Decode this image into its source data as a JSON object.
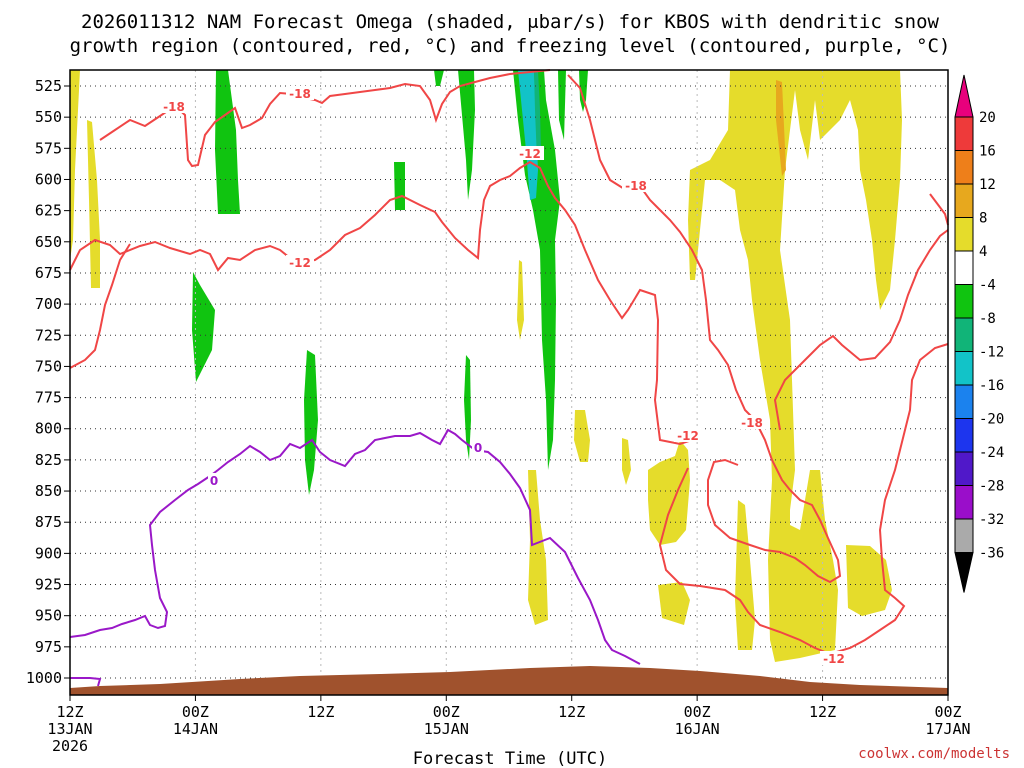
{
  "chart_data": {
    "type": "heatmap",
    "title_line1": "2026011312 NAM Forecast Omega (shaded, μbar/s) for KBOS with dendritic snow",
    "title_line2": "growth region (contoured, red, °C) and freezing level (contoured, purple, °C)",
    "xlabel": "Forecast Time (UTC)",
    "y_ticks": [
      525,
      550,
      575,
      600,
      625,
      650,
      675,
      700,
      725,
      750,
      775,
      800,
      825,
      850,
      875,
      900,
      925,
      950,
      975,
      1000
    ],
    "x_ticks": [
      {
        "hour": 0,
        "line1": "12Z",
        "line2": "13JAN",
        "line3": "2026"
      },
      {
        "hour": 12,
        "line1": "00Z",
        "line2": "14JAN",
        "line3": ""
      },
      {
        "hour": 24,
        "line1": "12Z",
        "line2": "",
        "line3": ""
      },
      {
        "hour": 36,
        "line1": "00Z",
        "line2": "15JAN",
        "line3": ""
      },
      {
        "hour": 48,
        "line1": "12Z",
        "line2": "",
        "line3": ""
      },
      {
        "hour": 60,
        "line1": "00Z",
        "line2": "16JAN",
        "line3": ""
      },
      {
        "hour": 72,
        "line1": "12Z",
        "line2": "",
        "line3": ""
      },
      {
        "hour": 84,
        "line1": "00Z",
        "line2": "17JAN",
        "line3": ""
      }
    ],
    "colorbar": {
      "labels": [
        "20",
        "16",
        "12",
        "8",
        "4",
        "-4",
        "-8",
        "-12",
        "-16",
        "-20",
        "-24",
        "-28",
        "-32",
        "-36"
      ],
      "colors": [
        "#e8007c",
        "#ee3a3a",
        "#ee7f1a",
        "#e7a81e",
        "#e5dc2b",
        "#ffffff",
        "#10c410",
        "#11b478",
        "#12c3c8",
        "#1b82ee",
        "#1d35ee",
        "#5018c9",
        "#9a0eca",
        "#aaaaaa",
        "#000000"
      ]
    },
    "contour_labels": {
      "red": [
        "-18",
        "-18",
        "-12",
        "-18",
        "-12",
        "-12",
        "-18",
        "-12"
      ],
      "purple": [
        "0",
        "0"
      ]
    },
    "credit": "coolwx.com/modelts",
    "series_colors": {
      "dgz": "#f04646",
      "freezing": "#9a18c8",
      "terrain": "#a0522d"
    }
  }
}
